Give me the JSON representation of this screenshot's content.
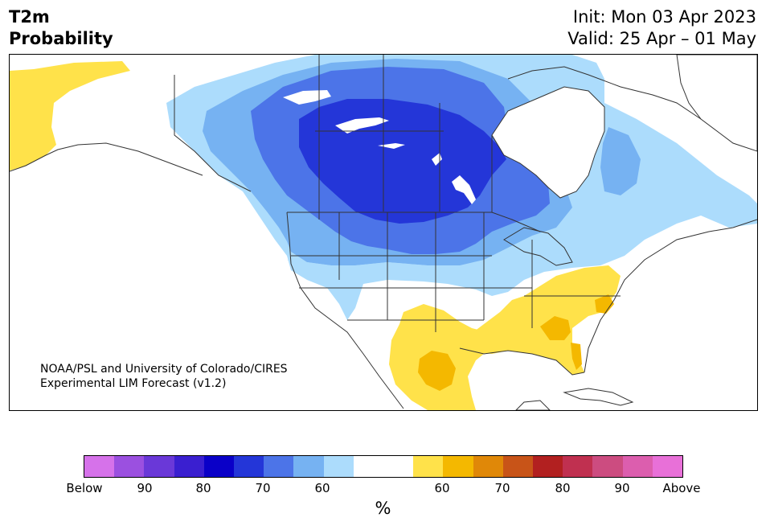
{
  "header": {
    "title_line1": "T2m",
    "title_line2": "Probability",
    "init": "Init: Mon 03 Apr 2023",
    "valid": "Valid: 25 Apr – 01 May"
  },
  "credit": {
    "line1": "NOAA/PSL and University of Colorado/CIRES",
    "line2": "Experimental LIM Forecast (v1.2)"
  },
  "colorbar": {
    "unit": "%",
    "colors": [
      "#d672ea",
      "#9b50e0",
      "#6a38d8",
      "#3a1fd0",
      "#0a00c8",
      "#2436d8",
      "#4c74e8",
      "#76b2f2",
      "#acdcfc",
      "#ffffff",
      "#ffffff",
      "#ffe24a",
      "#f4b800",
      "#e08808",
      "#c85418",
      "#b22020",
      "#c03050",
      "#cc4c80",
      "#dc5eae",
      "#e870d8"
    ],
    "labels": [
      "Below",
      "90",
      "80",
      "70",
      "60",
      "60",
      "70",
      "80",
      "90",
      "Above"
    ]
  },
  "map": {
    "colors": {
      "below_60": "#acdcfc",
      "below_60_70": "#76b2f2",
      "below_70": "#4c74e8",
      "below_75": "#2436d8",
      "below_80": "#0a00c8",
      "above_60": "#ffe24a",
      "above_65": "#f4b800"
    }
  }
}
